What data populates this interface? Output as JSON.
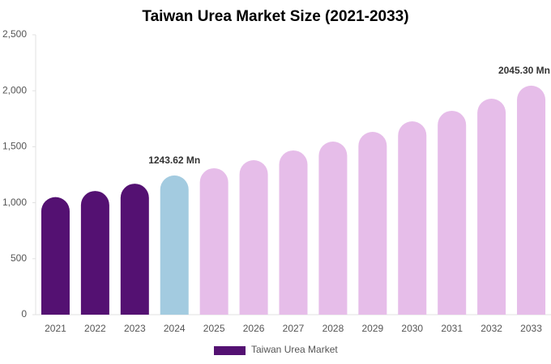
{
  "chart_data": {
    "type": "bar",
    "title": "Taiwan Urea Market Size (2021-2033)",
    "categories": [
      "2021",
      "2022",
      "2023",
      "2024",
      "2025",
      "2026",
      "2027",
      "2028",
      "2029",
      "2030",
      "2031",
      "2032",
      "2033"
    ],
    "series": [
      {
        "name": "Taiwan Urea Market",
        "color": "#541172",
        "values": [
          1050,
          1105,
          1170,
          1243.62,
          1308,
          1380,
          1467,
          1546,
          1633,
          1727,
          1821,
          1929,
          2045.3
        ],
        "value_labels": [
          null,
          null,
          null,
          "1243.62 Mn",
          null,
          null,
          null,
          null,
          null,
          null,
          null,
          null,
          "2045.30 Mn"
        ],
        "colors": [
          "#541172",
          "#541172",
          "#541172",
          "#a3cbe0",
          "#e6bde9",
          "#e6bde9",
          "#e6bde9",
          "#e6bde9",
          "#e6bde9",
          "#e6bde9",
          "#e6bde9",
          "#e6bde9",
          "#e6bde9"
        ]
      }
    ],
    "ylim": [
      0,
      2500
    ],
    "yticks": [
      0,
      500,
      {
        "value": 1000,
        "label": "1,000"
      },
      {
        "value": 1500,
        "label": "1,500"
      },
      {
        "value": 2000,
        "label": "2,000"
      },
      {
        "value": 2500,
        "label": "2,500"
      }
    ],
    "grid": false
  }
}
